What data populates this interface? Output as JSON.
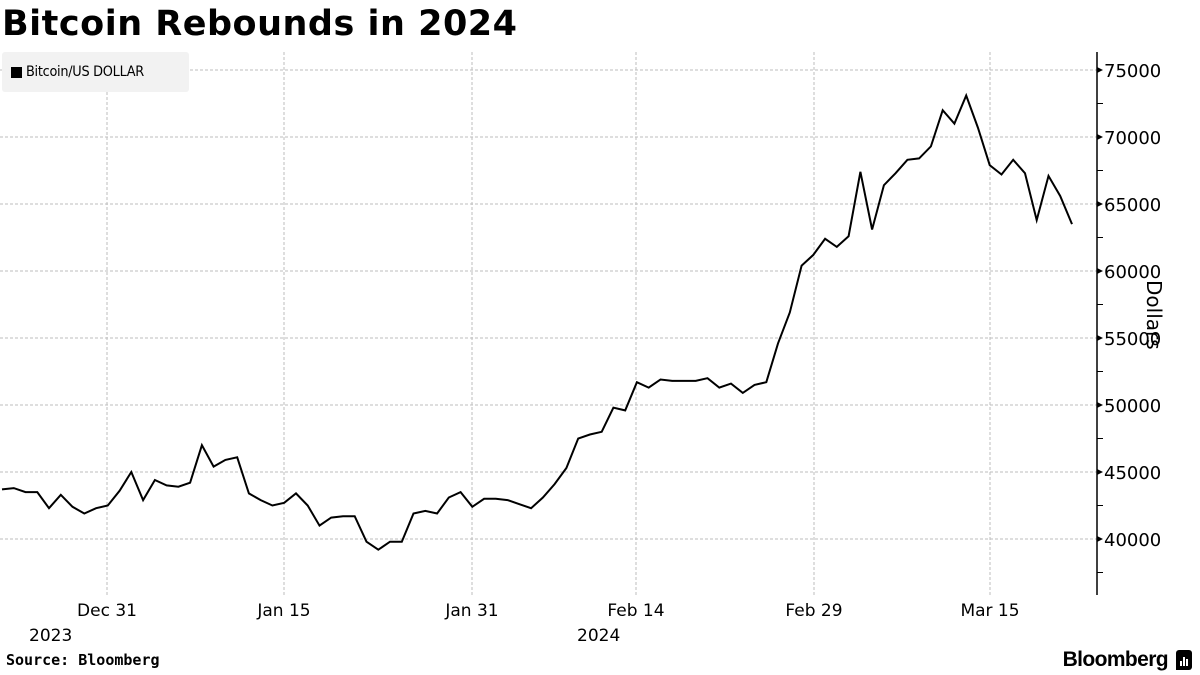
{
  "header": {
    "title": "Bitcoin Rebounds in 2024"
  },
  "legend": {
    "items": [
      {
        "label": "Bitcoin/US DOLLAR",
        "color": "#000000"
      }
    ]
  },
  "footer": {
    "source": "Source: Bloomberg",
    "brand": "Bloomberg"
  },
  "chart_data": {
    "type": "line",
    "title": "Bitcoin Rebounds in 2024",
    "xlabel": "",
    "ylabel": "Dollars",
    "ylim": [
      36500,
      76500
    ],
    "yticks": [
      40000,
      45000,
      50000,
      55000,
      60000,
      65000,
      70000,
      75000
    ],
    "xticks": [
      {
        "label": "Dec 31",
        "sublabel": "2023"
      },
      {
        "label": "Jan 15",
        "sublabel": ""
      },
      {
        "label": "Jan 31",
        "sublabel": ""
      },
      {
        "label": "Feb 14",
        "sublabel": "2024"
      },
      {
        "label": "Feb 29",
        "sublabel": ""
      },
      {
        "label": "Mar 15",
        "sublabel": ""
      }
    ],
    "grid": true,
    "legend_position": "top-left",
    "series": [
      {
        "name": "Bitcoin/US DOLLAR",
        "color": "#000000",
        "x": [
          "Dec 20",
          "Dec 21",
          "Dec 22",
          "Dec 23",
          "Dec 24",
          "Dec 25",
          "Dec 26",
          "Dec 27",
          "Dec 28",
          "Dec 29",
          "Dec 30",
          "Dec 31",
          "Jan 1",
          "Jan 2",
          "Jan 3",
          "Jan 4",
          "Jan 5",
          "Jan 6",
          "Jan 7",
          "Jan 8",
          "Jan 9",
          "Jan 10",
          "Jan 11",
          "Jan 12",
          "Jan 13",
          "Jan 14",
          "Jan 15",
          "Jan 16",
          "Jan 17",
          "Jan 18",
          "Jan 19",
          "Jan 20",
          "Jan 21",
          "Jan 22",
          "Jan 23",
          "Jan 24",
          "Jan 25",
          "Jan 26",
          "Jan 27",
          "Jan 28",
          "Jan 29",
          "Jan 30",
          "Jan 31",
          "Feb 1",
          "Feb 2",
          "Feb 3",
          "Feb 4",
          "Feb 5",
          "Feb 6",
          "Feb 7",
          "Feb 8",
          "Feb 9",
          "Feb 10",
          "Feb 11",
          "Feb 12",
          "Feb 13",
          "Feb 14",
          "Feb 15",
          "Feb 16",
          "Feb 17",
          "Feb 18",
          "Feb 19",
          "Feb 20",
          "Feb 21",
          "Feb 22",
          "Feb 23",
          "Feb 24",
          "Feb 25",
          "Feb 26",
          "Feb 27",
          "Feb 28",
          "Feb 29",
          "Mar 1",
          "Mar 2",
          "Mar 3",
          "Mar 4",
          "Mar 5",
          "Mar 6",
          "Mar 7",
          "Mar 8",
          "Mar 9",
          "Mar 10",
          "Mar 11",
          "Mar 12",
          "Mar 13",
          "Mar 14",
          "Mar 15",
          "Mar 16",
          "Mar 17",
          "Mar 18",
          "Mar 19",
          "Mar 20",
          "Mar 21",
          "Mar 22",
          "Mar 23"
        ],
        "values": [
          43700,
          43800,
          43500,
          43500,
          42300,
          43300,
          42400,
          41900,
          42300,
          42500,
          43600,
          45000,
          42900,
          44400,
          44000,
          43900,
          44200,
          47000,
          45400,
          45900,
          46100,
          43400,
          42900,
          42500,
          42700,
          43400,
          42500,
          41000,
          41600,
          41700,
          41700,
          39800,
          39200,
          39800,
          39800,
          41900,
          42100,
          41900,
          43100,
          43500,
          42400,
          43000,
          43000,
          42900,
          42600,
          42300,
          43100,
          44100,
          45300,
          47500,
          47800,
          48000,
          49800,
          49600,
          51700,
          51300,
          51900,
          51800,
          51800,
          51800,
          52000,
          51300,
          51600,
          50900,
          51500,
          51700,
          54600,
          56900,
          60400,
          61200,
          62400,
          61800,
          62600,
          67400,
          63100,
          66400,
          67300,
          68300,
          68400,
          69300,
          72000,
          71000,
          73100,
          70700,
          67900,
          67200,
          68300,
          67300,
          63800,
          67100,
          65600,
          63500,
          null,
          null,
          null
        ]
      }
    ]
  }
}
